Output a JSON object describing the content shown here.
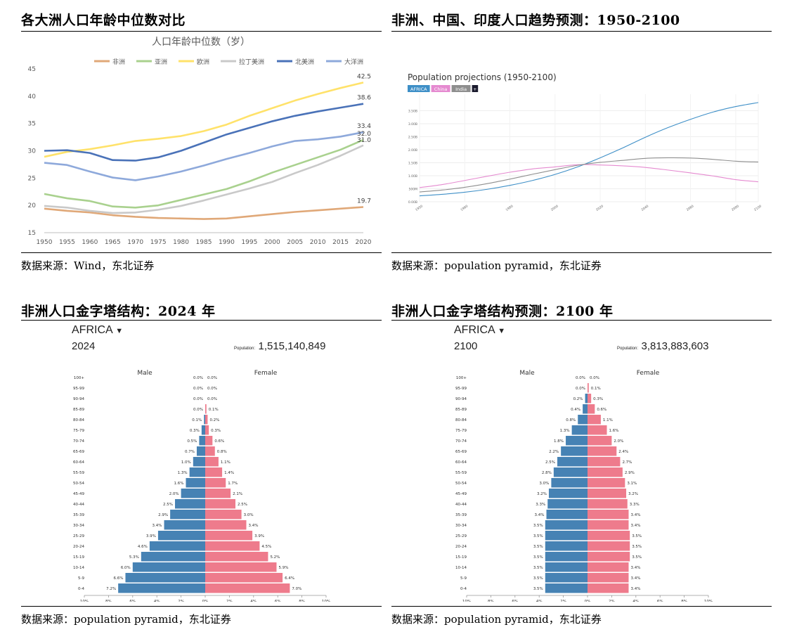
{
  "panels": {
    "tl": {
      "title": "各大洲人口年龄中位数对比",
      "source": "数据来源：Wind，东北证券"
    },
    "tr": {
      "title": "非洲、中国、印度人口趋势预测：1950-2100",
      "source": "数据来源：population pyramid，东北证券"
    },
    "bl": {
      "title": "非洲人口金字塔结构：2024 年",
      "source": "数据来源：population pyramid，东北证券"
    },
    "br": {
      "title": "非洲人口金字塔结构预测：2100 年",
      "source": "数据来源：population pyramid，东北证券"
    }
  },
  "chart_data": [
    {
      "type": "line",
      "title": "人口年龄中位数（岁）",
      "x": [
        1950,
        1955,
        1960,
        1965,
        1970,
        1975,
        1980,
        1985,
        1990,
        1995,
        2000,
        2005,
        2010,
        2015,
        2020
      ],
      "ylim": [
        15,
        45
      ],
      "yticks": [
        15,
        20,
        25,
        30,
        35,
        40,
        45
      ],
      "legend_position": "top",
      "series": [
        {
          "name": "非洲",
          "color": "#E0A878",
          "values": [
            19.4,
            19.0,
            18.7,
            18.2,
            17.9,
            17.7,
            17.6,
            17.5,
            17.6,
            18.0,
            18.4,
            18.8,
            19.1,
            19.4,
            19.7
          ]
        },
        {
          "name": "亚洲",
          "color": "#A9D18E",
          "values": [
            22.1,
            21.3,
            20.8,
            19.8,
            19.6,
            20.0,
            21.0,
            22.0,
            23.0,
            24.4,
            26.0,
            27.4,
            28.8,
            30.2,
            32.0
          ]
        },
        {
          "name": "欧洲",
          "color": "#FFE26A",
          "values": [
            28.9,
            29.8,
            30.3,
            31.0,
            31.8,
            32.2,
            32.7,
            33.6,
            34.8,
            36.4,
            37.8,
            39.2,
            40.4,
            41.5,
            42.5
          ]
        },
        {
          "name": "拉丁美洲",
          "color": "#C9C9C9",
          "values": [
            19.9,
            19.6,
            19.0,
            18.6,
            18.7,
            19.2,
            19.9,
            20.9,
            22.0,
            23.1,
            24.3,
            25.9,
            27.4,
            29.1,
            31.0
          ]
        },
        {
          "name": "北美洲",
          "color": "#4A72B8",
          "values": [
            30.0,
            30.1,
            29.6,
            28.3,
            28.2,
            28.8,
            30.0,
            31.5,
            33.0,
            34.2,
            35.4,
            36.4,
            37.2,
            37.9,
            38.6
          ]
        },
        {
          "name": "大洋洲",
          "color": "#8EA9DB",
          "values": [
            27.8,
            27.4,
            26.2,
            25.1,
            24.6,
            25.3,
            26.2,
            27.3,
            28.5,
            29.6,
            30.8,
            31.8,
            32.1,
            32.6,
            33.4
          ]
        }
      ],
      "end_labels": [
        "42.5",
        "38.6",
        "33.4",
        "32.0",
        "31.0",
        "19.7"
      ]
    },
    {
      "type": "line",
      "title": "Population projections (1950-2100)",
      "legend": [
        "AFRICA",
        "China",
        "India",
        "+"
      ],
      "x": [
        1950,
        1960,
        1970,
        1980,
        1990,
        2000,
        2010,
        2020,
        2030,
        2040,
        2050,
        2060,
        2070,
        2080,
        2090,
        2100
      ],
      "x_tick_labels": [
        "1950",
        "1960",
        "1980",
        "2000",
        "2020",
        "2040",
        "2060",
        "2080",
        "2100"
      ],
      "ylim": [
        0,
        4000
      ],
      "y_tick_labels": [
        "0.00B",
        "500M",
        "1.00B",
        "1.50B",
        "2.00B",
        "2.50B",
        "3.00B",
        "3.50B"
      ],
      "y_tick_values": [
        0,
        500,
        1000,
        1500,
        2000,
        2500,
        3000,
        3500
      ],
      "series": [
        {
          "name": "AFRICA",
          "color": "#3E8FC7",
          "values": [
            228,
            285,
            366,
            480,
            630,
            818,
            1050,
            1340,
            1690,
            2070,
            2480,
            2850,
            3170,
            3450,
            3660,
            3814
          ]
        },
        {
          "name": "China",
          "color": "#E58AD0",
          "values": [
            544,
            660,
            818,
            981,
            1135,
            1263,
            1340,
            1425,
            1415,
            1380,
            1320,
            1220,
            1110,
            990,
            850,
            767
          ]
        },
        {
          "name": "India",
          "color": "#8E8E8E",
          "values": [
            376,
            450,
            555,
            697,
            870,
            1057,
            1234,
            1402,
            1515,
            1590,
            1668,
            1690,
            1680,
            1630,
            1560,
            1530
          ]
        }
      ]
    },
    {
      "type": "bar",
      "title": "AFRICA",
      "year": "2024",
      "population_label": "Population:",
      "population": "1,515,140,849",
      "male_label": "Male",
      "female_label": "Female",
      "categories": [
        "100+",
        "95-99",
        "90-94",
        "85-89",
        "80-84",
        "75-79",
        "70-74",
        "65-69",
        "60-64",
        "55-59",
        "50-54",
        "45-49",
        "40-44",
        "35-39",
        "30-34",
        "25-29",
        "20-24",
        "15-19",
        "10-14",
        "5-9",
        "0-4"
      ],
      "male": [
        0.0,
        0.0,
        0.0,
        0.0,
        0.1,
        0.3,
        0.5,
        0.7,
        1.0,
        1.3,
        1.6,
        2.0,
        2.5,
        2.9,
        3.4,
        3.9,
        4.6,
        5.3,
        6.0,
        6.6,
        7.2
      ],
      "female": [
        0.0,
        0.0,
        0.0,
        0.1,
        0.2,
        0.3,
        0.6,
        0.8,
        1.1,
        1.4,
        1.7,
        2.1,
        2.5,
        3.0,
        3.4,
        3.9,
        4.5,
        5.2,
        5.9,
        6.4,
        7.0
      ],
      "x_tick_labels": [
        "10%",
        "8%",
        "6%",
        "4%",
        "2%",
        "0%",
        "2%",
        "4%",
        "6%",
        "8%",
        "10%"
      ],
      "xlim": [
        -10,
        10
      ],
      "colors": {
        "male": "#4682B4",
        "female": "#EE7B8C"
      }
    },
    {
      "type": "bar",
      "title": "AFRICA",
      "year": "2100",
      "population_label": "Population:",
      "population": "3,813,883,603",
      "male_label": "Male",
      "female_label": "Female",
      "categories": [
        "100+",
        "95-99",
        "90-94",
        "85-89",
        "80-84",
        "75-79",
        "70-74",
        "65-69",
        "60-64",
        "55-59",
        "50-54",
        "45-49",
        "40-44",
        "35-39",
        "30-34",
        "25-29",
        "20-24",
        "15-19",
        "10-14",
        "5-9",
        "0-4"
      ],
      "male": [
        0.0,
        0.0,
        0.2,
        0.4,
        0.8,
        1.3,
        1.8,
        2.2,
        2.5,
        2.8,
        3.0,
        3.2,
        3.3,
        3.4,
        3.5,
        3.5,
        3.5,
        3.5,
        3.5,
        3.5,
        3.5
      ],
      "female": [
        0.0,
        0.1,
        0.3,
        0.6,
        1.1,
        1.6,
        2.0,
        2.4,
        2.7,
        2.9,
        3.1,
        3.2,
        3.3,
        3.4,
        3.4,
        3.5,
        3.5,
        3.5,
        3.4,
        3.4,
        3.4
      ],
      "x_tick_labels": [
        "10%",
        "8%",
        "6%",
        "4%",
        "2%",
        "0%",
        "2%",
        "4%",
        "6%",
        "8%",
        "10%"
      ],
      "xlim": [
        -10,
        10
      ],
      "colors": {
        "male": "#4682B4",
        "female": "#EE7B8C"
      }
    }
  ]
}
